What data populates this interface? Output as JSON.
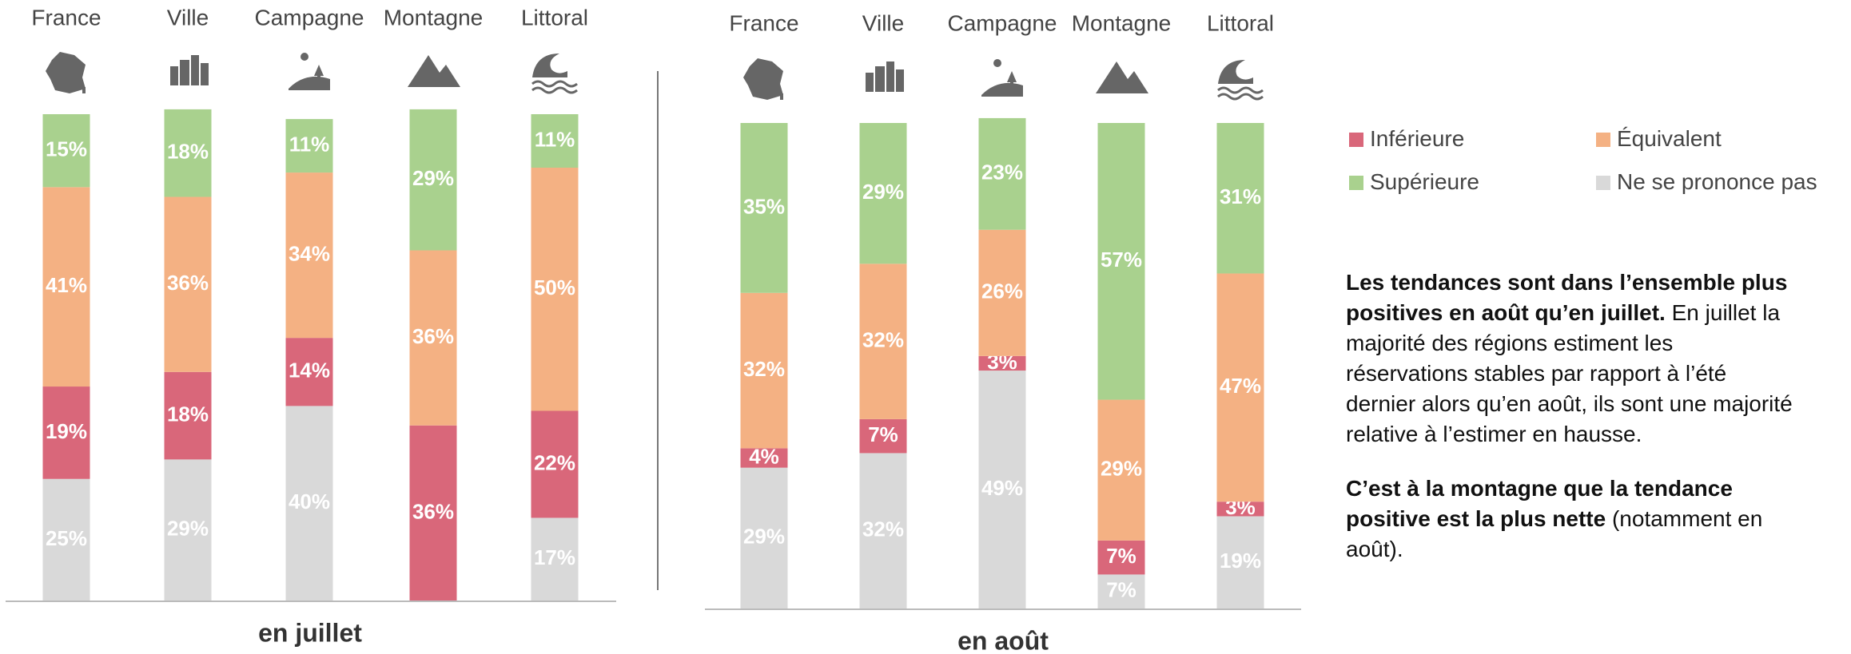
{
  "chart_data": [
    {
      "type": "bar",
      "title": "en juillet",
      "categories": [
        "France",
        "Ville",
        "Campagne",
        "Montagne",
        "Littoral"
      ],
      "ylim": [
        0,
        100
      ],
      "series": [
        {
          "name": "Inférieure",
          "color": "#d9677a",
          "values": [
            19,
            18,
            14,
            36,
            22
          ],
          "value_labels": [
            "19%",
            "18%",
            "14%",
            "36%",
            "22%"
          ]
        },
        {
          "name": "Équivalent",
          "color": "#f4b183",
          "values": [
            41,
            36,
            34,
            36,
            50
          ],
          "value_labels": [
            "41%",
            "36%",
            "34%",
            "36%",
            "50%"
          ]
        },
        {
          "name": "Supérieure",
          "color": "#a9d18e",
          "values": [
            15,
            18,
            11,
            29,
            11
          ],
          "value_labels": [
            "15%",
            "18%",
            "11%",
            "29%",
            "11%"
          ]
        },
        {
          "name": "Ne se prononce pas",
          "color": "#d9d9d9",
          "values": [
            25,
            29,
            40,
            0,
            17
          ],
          "value_labels": [
            "25%",
            "29%",
            "40%",
            null,
            "17%"
          ]
        }
      ]
    },
    {
      "type": "bar",
      "title": "en août",
      "categories": [
        "France",
        "Ville",
        "Campagne",
        "Montagne",
        "Littoral"
      ],
      "ylim": [
        0,
        100
      ],
      "series": [
        {
          "color": "#d9677a",
          "values": [
            4,
            7,
            3,
            7,
            3
          ],
          "value_labels": [
            "4%",
            "7%",
            "3%",
            "7%",
            "3%"
          ]
        },
        {
          "color": "#f4b183",
          "values": [
            32,
            32,
            26,
            29,
            47
          ],
          "value_labels": [
            "32%",
            "32%",
            "26%",
            "29%",
            "47%"
          ]
        },
        {
          "color": "#a9d18e",
          "values": [
            35,
            29,
            23,
            57,
            31
          ],
          "value_labels": [
            "35%",
            "29%",
            "23%",
            "57%",
            "31%"
          ]
        },
        {
          "color": "#d9d9d9",
          "values": [
            29,
            32,
            49,
            7,
            19
          ],
          "value_labels": [
            "29%",
            "32%",
            "49%",
            "7%",
            "19%"
          ]
        }
      ]
    }
  ],
  "notes": [
    {
      "bold": "Les tendances sont dans l’ensemble plus positives en août qu’en juillet.",
      "text": "En juillet la majorité des régions estiment les réservations stables par rapport à l’été dernier alors qu’en août, ils sont une majorité relative à l’estimer en hausse."
    },
    {
      "bold": "C’est à la montagne que la tendance positive est la plus nette",
      "text": "(notamment en août)."
    }
  ]
}
